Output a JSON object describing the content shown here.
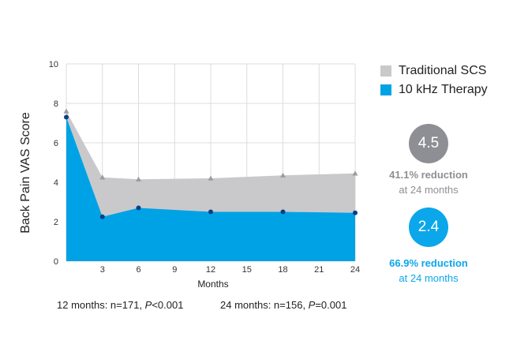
{
  "chart_data": {
    "type": "area",
    "x": [
      0,
      3,
      6,
      12,
      18,
      24
    ],
    "xticks": [
      3,
      6,
      9,
      12,
      15,
      18,
      21,
      24
    ],
    "xlim": [
      0,
      24
    ],
    "ylim": [
      0,
      10
    ],
    "yticks": [
      0,
      2,
      4,
      6,
      8,
      10
    ],
    "xlabel": "Months",
    "ylabel": "Back Pain VAS Score",
    "grid": true,
    "legend_position": "top-right",
    "series": [
      {
        "name": "Traditional SCS",
        "values": [
          7.6,
          4.25,
          4.15,
          4.2,
          4.35,
          4.45
        ],
        "color": "#c9c9cb",
        "marker": "triangle",
        "marker_color": "#9d9da0"
      },
      {
        "name": "10 kHz Therapy",
        "values": [
          7.3,
          2.25,
          2.7,
          2.5,
          2.5,
          2.45
        ],
        "color": "#00a2e6",
        "marker": "circle",
        "marker_color": "#0a3f86"
      }
    ]
  },
  "badges": {
    "traditional": {
      "value": "4.5",
      "line1": "41.1% reduction",
      "line2": "at 24 months",
      "color": "#8e8f94"
    },
    "therapy": {
      "value": "2.4",
      "line1": "66.9% reduction",
      "line2": "at 24 months",
      "color": "#0ba7ea"
    }
  },
  "footnotes": {
    "m12_prefix": "12 months: n=171, ",
    "m12_p": "P",
    "m12_value": "<0.001",
    "m24_prefix": "24 months: n=156, ",
    "m24_p": "P",
    "m24_value": "=0.001"
  }
}
